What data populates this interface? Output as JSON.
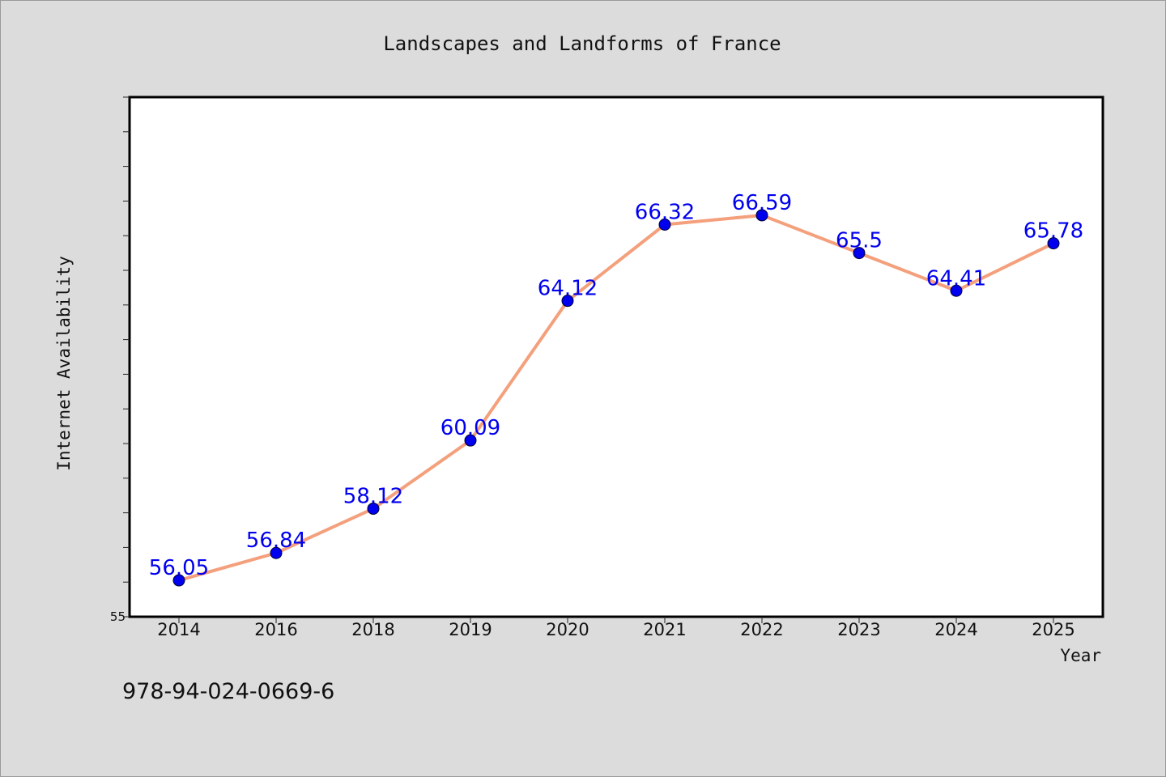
{
  "chart_data": {
    "type": "line",
    "title": "Landscapes and Landforms of France",
    "xlabel": "Year",
    "ylabel": "Internet Availability",
    "categories": [
      "2014",
      "2016",
      "2018",
      "2019",
      "2020",
      "2021",
      "2022",
      "2023",
      "2024",
      "2025"
    ],
    "series": [
      {
        "values": [
          56.05,
          56.84,
          58.12,
          60.09,
          64.12,
          66.32,
          66.59,
          65.5,
          64.41,
          65.78
        ],
        "labels": [
          "56.05",
          "56.84",
          "58.12",
          "60.09",
          "64.12",
          "66.32",
          "66.59",
          "65.5",
          "64.41",
          "65.78"
        ],
        "line_color": "#f4a07c",
        "marker_color": "#0000ee",
        "label_color": "#0000ee"
      }
    ],
    "ylim": [
      55,
      70
    ],
    "y_tick_labels": [
      "55"
    ],
    "grid": false
  },
  "footer": {
    "isbn": "978-94-024-0669-6"
  }
}
